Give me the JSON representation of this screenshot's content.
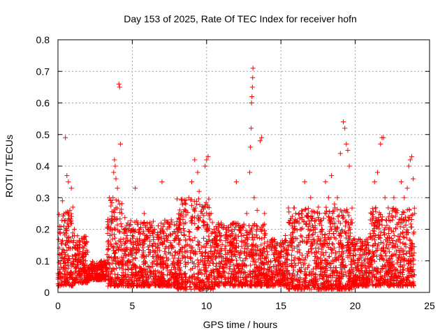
{
  "chart_data": {
    "type": "scatter",
    "title": "Day 153 of 2025, Rate Of TEC Index for receiver hofn",
    "xlabel": "GPS time / hours",
    "ylabel": "ROTI / TECUs",
    "xlim": [
      0,
      25
    ],
    "ylim": [
      0,
      0.8
    ],
    "xticks": [
      0,
      5,
      10,
      15,
      20,
      25
    ],
    "yticks": [
      0,
      0.1,
      0.2,
      0.3,
      0.4,
      0.5,
      0.6,
      0.7,
      0.8
    ],
    "xtick_labels": [
      "0",
      "5",
      "10",
      "15",
      "20",
      "25"
    ],
    "ytick_labels": [
      "0",
      "0.1",
      "0.2",
      "0.3",
      "0.4",
      "0.5",
      "0.6",
      "0.7",
      "0.8"
    ],
    "grid": true,
    "marker": "+",
    "color": "#ff0000",
    "series": [
      {
        "points": [
          [
            0.0,
            0.06
          ],
          [
            0.1,
            0.12
          ],
          [
            0.15,
            0.19
          ],
          [
            0.2,
            0.08
          ],
          [
            0.3,
            0.29
          ],
          [
            0.35,
            0.1
          ],
          [
            0.4,
            0.21
          ],
          [
            0.5,
            0.49
          ],
          [
            0.55,
            0.15
          ],
          [
            0.6,
            0.37
          ],
          [
            0.7,
            0.35
          ],
          [
            0.75,
            0.23
          ],
          [
            0.8,
            0.26
          ],
          [
            0.9,
            0.33
          ],
          [
            1.0,
            0.27
          ],
          [
            1.1,
            0.2
          ],
          [
            1.2,
            0.15
          ],
          [
            1.3,
            0.12
          ],
          [
            1.5,
            0.1
          ],
          [
            1.7,
            0.09
          ],
          [
            1.9,
            0.12
          ],
          [
            2.1,
            0.08
          ],
          [
            2.3,
            0.07
          ],
          [
            2.5,
            0.06
          ],
          [
            2.7,
            0.08
          ],
          [
            2.9,
            0.07
          ],
          [
            3.1,
            0.1
          ],
          [
            3.3,
            0.12
          ],
          [
            3.5,
            0.18
          ],
          [
            3.6,
            0.22
          ],
          [
            3.7,
            0.3
          ],
          [
            3.75,
            0.38
          ],
          [
            3.8,
            0.42
          ],
          [
            3.85,
            0.4
          ],
          [
            3.9,
            0.36
          ],
          [
            4.0,
            0.33
          ],
          [
            4.1,
            0.66
          ],
          [
            4.15,
            0.65
          ],
          [
            4.2,
            0.47
          ],
          [
            4.3,
            0.25
          ],
          [
            4.5,
            0.2
          ],
          [
            4.7,
            0.22
          ],
          [
            5.0,
            0.18
          ],
          [
            5.2,
            0.33
          ],
          [
            5.5,
            0.2
          ],
          [
            5.8,
            0.25
          ],
          [
            6.0,
            0.22
          ],
          [
            6.2,
            0.18
          ],
          [
            6.5,
            0.2
          ],
          [
            6.8,
            0.15
          ],
          [
            7.0,
            0.35
          ],
          [
            7.3,
            0.18
          ],
          [
            7.6,
            0.15
          ],
          [
            8.0,
            0.2
          ],
          [
            8.3,
            0.25
          ],
          [
            8.6,
            0.28
          ],
          [
            8.8,
            0.3
          ],
          [
            9.0,
            0.35
          ],
          [
            9.2,
            0.42
          ],
          [
            9.4,
            0.38
          ],
          [
            9.5,
            0.32
          ],
          [
            9.7,
            0.25
          ],
          [
            9.9,
            0.4
          ],
          [
            10.0,
            0.42
          ],
          [
            10.1,
            0.43
          ],
          [
            10.3,
            0.25
          ],
          [
            10.5,
            0.2
          ],
          [
            10.8,
            0.22
          ],
          [
            11.0,
            0.18
          ],
          [
            11.3,
            0.2
          ],
          [
            11.6,
            0.15
          ],
          [
            11.8,
            0.22
          ],
          [
            12.0,
            0.35
          ],
          [
            12.2,
            0.2
          ],
          [
            12.5,
            0.18
          ],
          [
            12.7,
            0.25
          ],
          [
            12.9,
            0.38
          ],
          [
            12.95,
            0.46
          ],
          [
            13.0,
            0.52
          ],
          [
            13.02,
            0.6
          ],
          [
            13.05,
            0.62
          ],
          [
            13.08,
            0.65
          ],
          [
            13.1,
            0.68
          ],
          [
            13.12,
            0.71
          ],
          [
            13.2,
            0.3
          ],
          [
            13.4,
            0.26
          ],
          [
            13.6,
            0.48
          ],
          [
            13.7,
            0.49
          ],
          [
            13.9,
            0.25
          ],
          [
            14.2,
            0.15
          ],
          [
            14.5,
            0.12
          ],
          [
            14.8,
            0.1
          ],
          [
            15.0,
            0.12
          ],
          [
            15.3,
            0.18
          ],
          [
            15.6,
            0.22
          ],
          [
            15.9,
            0.2
          ],
          [
            16.0,
            0.25
          ],
          [
            16.3,
            0.2
          ],
          [
            16.6,
            0.35
          ],
          [
            17.0,
            0.3
          ],
          [
            17.3,
            0.2
          ],
          [
            17.6,
            0.25
          ],
          [
            18.0,
            0.35
          ],
          [
            18.2,
            0.3
          ],
          [
            18.4,
            0.37
          ],
          [
            18.6,
            0.28
          ],
          [
            18.8,
            0.3
          ],
          [
            19.0,
            0.44
          ],
          [
            19.2,
            0.54
          ],
          [
            19.3,
            0.52
          ],
          [
            19.4,
            0.47
          ],
          [
            19.5,
            0.45
          ],
          [
            19.6,
            0.4
          ],
          [
            19.8,
            0.22
          ],
          [
            20.0,
            0.15
          ],
          [
            20.3,
            0.12
          ],
          [
            20.6,
            0.1
          ],
          [
            20.9,
            0.15
          ],
          [
            21.1,
            0.25
          ],
          [
            21.3,
            0.35
          ],
          [
            21.5,
            0.38
          ],
          [
            21.7,
            0.47
          ],
          [
            21.8,
            0.49
          ],
          [
            21.9,
            0.49
          ],
          [
            22.0,
            0.3
          ],
          [
            22.3,
            0.25
          ],
          [
            22.6,
            0.3
          ],
          [
            22.9,
            0.22
          ],
          [
            23.1,
            0.35
          ],
          [
            23.3,
            0.3
          ],
          [
            23.5,
            0.33
          ],
          [
            23.6,
            0.4
          ],
          [
            23.7,
            0.42
          ],
          [
            23.8,
            0.43
          ],
          [
            23.9,
            0.36
          ],
          [
            24.0,
            0.25
          ]
        ]
      }
    ],
    "density_bands": [
      {
        "x": [
          0.0,
          1.0
        ],
        "y": [
          0.02,
          0.26
        ]
      },
      {
        "x": [
          1.0,
          2.0
        ],
        "y": [
          0.03,
          0.18
        ]
      },
      {
        "x": [
          2.0,
          3.3
        ],
        "y": [
          0.04,
          0.1
        ]
      },
      {
        "x": [
          3.3,
          4.5
        ],
        "y": [
          0.02,
          0.3
        ]
      },
      {
        "x": [
          4.5,
          8.0
        ],
        "y": [
          0.02,
          0.23
        ]
      },
      {
        "x": [
          8.0,
          10.5
        ],
        "y": [
          0.01,
          0.3
        ]
      },
      {
        "x": [
          10.5,
          12.5
        ],
        "y": [
          0.02,
          0.22
        ]
      },
      {
        "x": [
          12.5,
          14.0
        ],
        "y": [
          0.02,
          0.22
        ]
      },
      {
        "x": [
          14.0,
          15.5
        ],
        "y": [
          0.02,
          0.17
        ]
      },
      {
        "x": [
          15.5,
          19.8
        ],
        "y": [
          0.01,
          0.27
        ]
      },
      {
        "x": [
          19.8,
          21.0
        ],
        "y": [
          0.02,
          0.17
        ]
      },
      {
        "x": [
          21.0,
          24.0
        ],
        "y": [
          0.02,
          0.27
        ]
      }
    ]
  }
}
